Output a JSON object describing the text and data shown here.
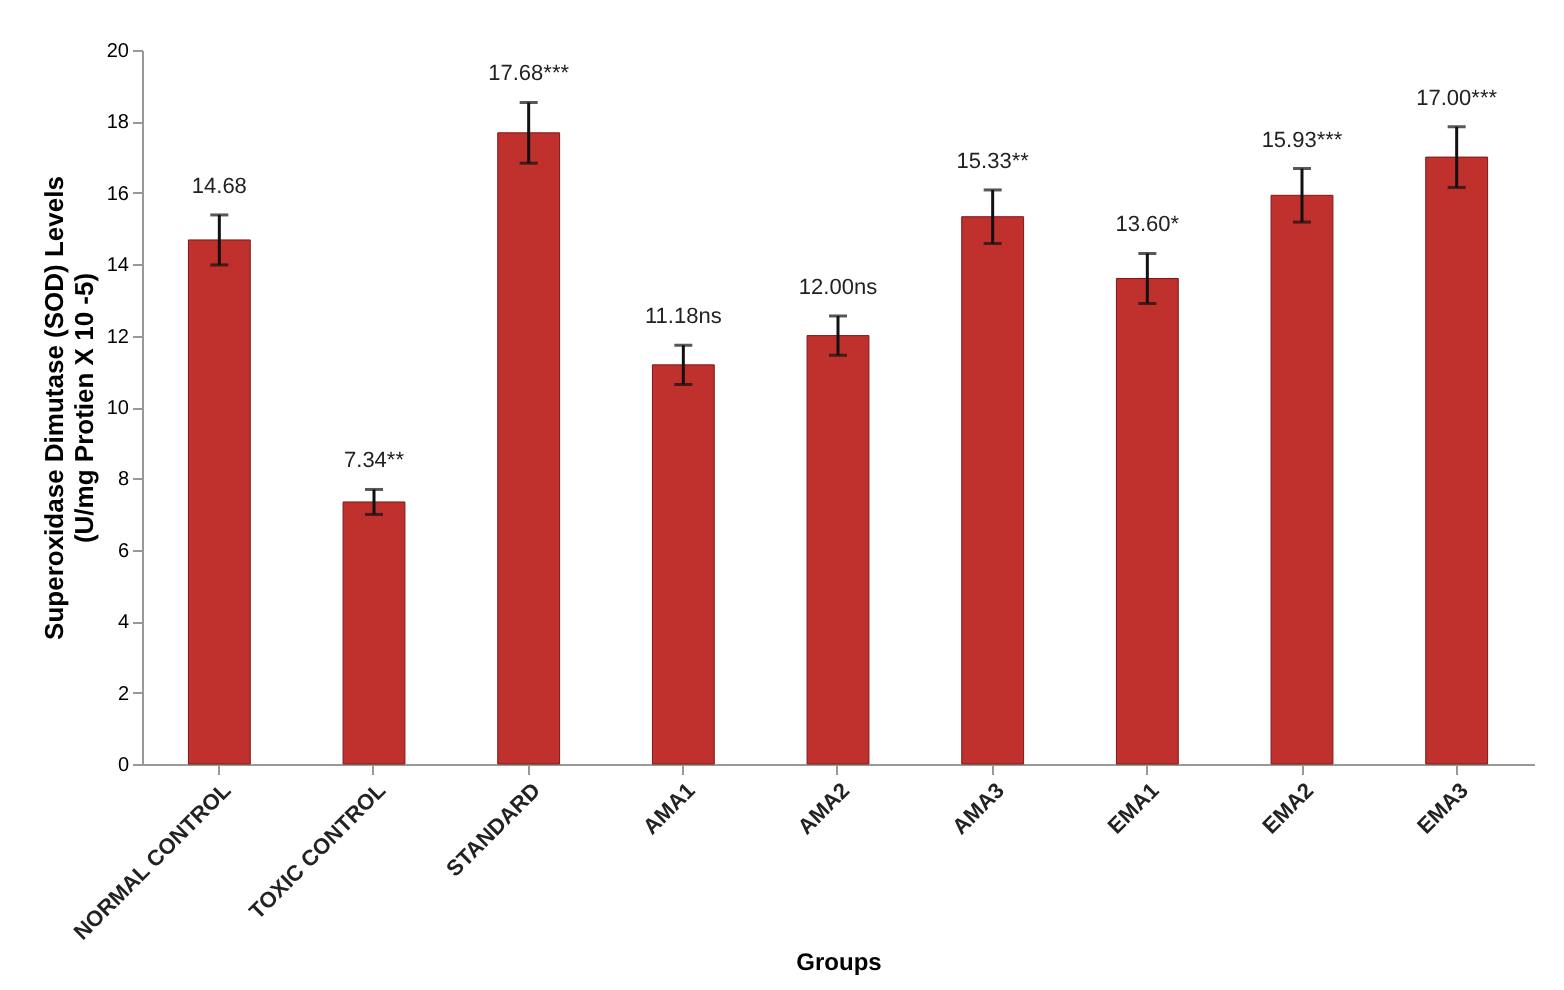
{
  "chart_data": {
    "type": "bar",
    "xlabel": "Groups",
    "ylabel": "Superoxidase Dimutase (SOD) Levels\n(U/mg Protien X 10 -5)",
    "categories": [
      "NORMAL CONTROL",
      "TOXIC CONTROL",
      "STANDARD",
      "AMA1",
      "AMA2",
      "AMA3",
      "EMA1",
      "EMA2",
      "EMA3"
    ],
    "values": [
      14.68,
      7.34,
      17.68,
      11.18,
      12.0,
      15.33,
      13.6,
      15.93,
      17.0
    ],
    "errors": [
      0.7,
      0.35,
      0.85,
      0.55,
      0.55,
      0.75,
      0.7,
      0.75,
      0.85
    ],
    "value_labels": [
      "14.68",
      "7.34**",
      "17.68***",
      "11.18ns",
      "12.00ns",
      "15.33**",
      "13.60*",
      "15.93***",
      "17.00***"
    ],
    "color": "#c0302c",
    "ylim": [
      0,
      20
    ],
    "yticks": [
      0,
      2,
      4,
      6,
      8,
      10,
      12,
      14,
      16,
      18,
      20
    ],
    "grid": false
  }
}
